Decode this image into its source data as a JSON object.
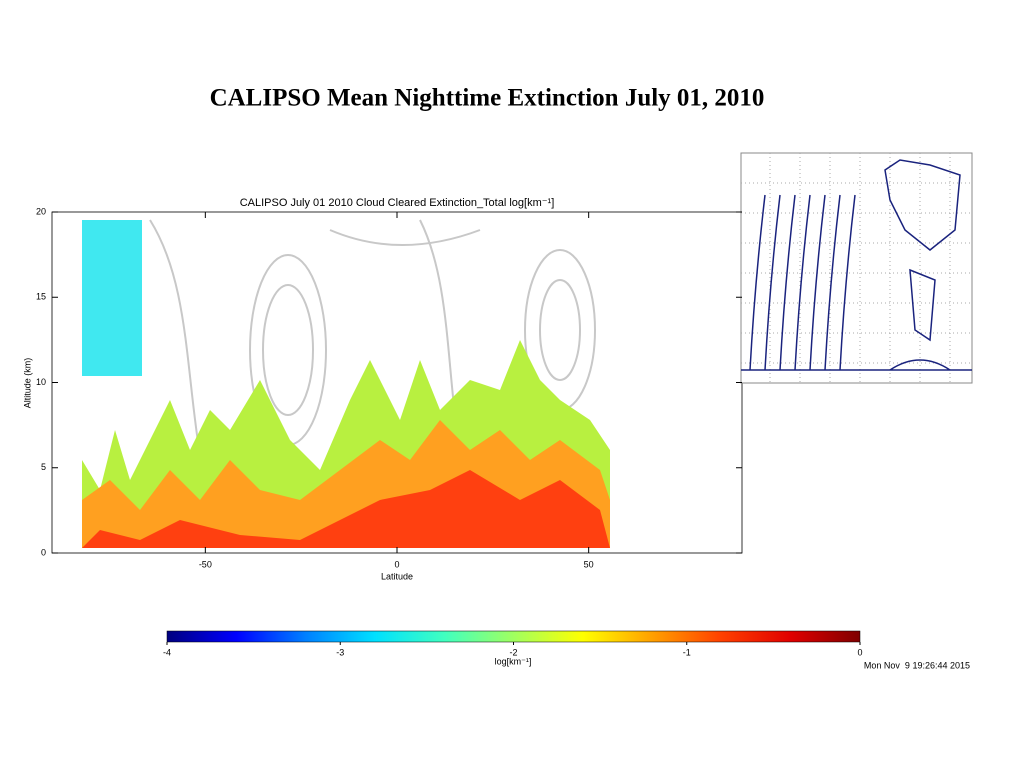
{
  "chart_data": {
    "type": "heatmap",
    "page_title": "CALIPSO Mean Nighttime Extinction July 01, 2010",
    "title": "CALIPSO July 01 2010 Cloud Cleared Extinction_Total log[km⁻¹]",
    "x_label": "Latitude",
    "y_label": "Altitude (km)",
    "xlim": [
      -90,
      90
    ],
    "xticks": [
      -50,
      0,
      50
    ],
    "ylim": [
      0,
      20
    ],
    "yticks": [
      0,
      5,
      10,
      15,
      20
    ],
    "colorbar": {
      "label": "log[km⁻¹]",
      "lim": [
        -4,
        0
      ],
      "ticks": [
        -4,
        -3,
        -2,
        -1,
        0
      ],
      "colors": [
        "#00007f",
        "#0000ff",
        "#0080ff",
        "#00e0ff",
        "#40ffc0",
        "#a0ff60",
        "#ffff00",
        "#ffa000",
        "#ff4000",
        "#e00000",
        "#7f0000"
      ]
    },
    "timestamp": "Mon Nov  9 19:26:44 2015"
  }
}
